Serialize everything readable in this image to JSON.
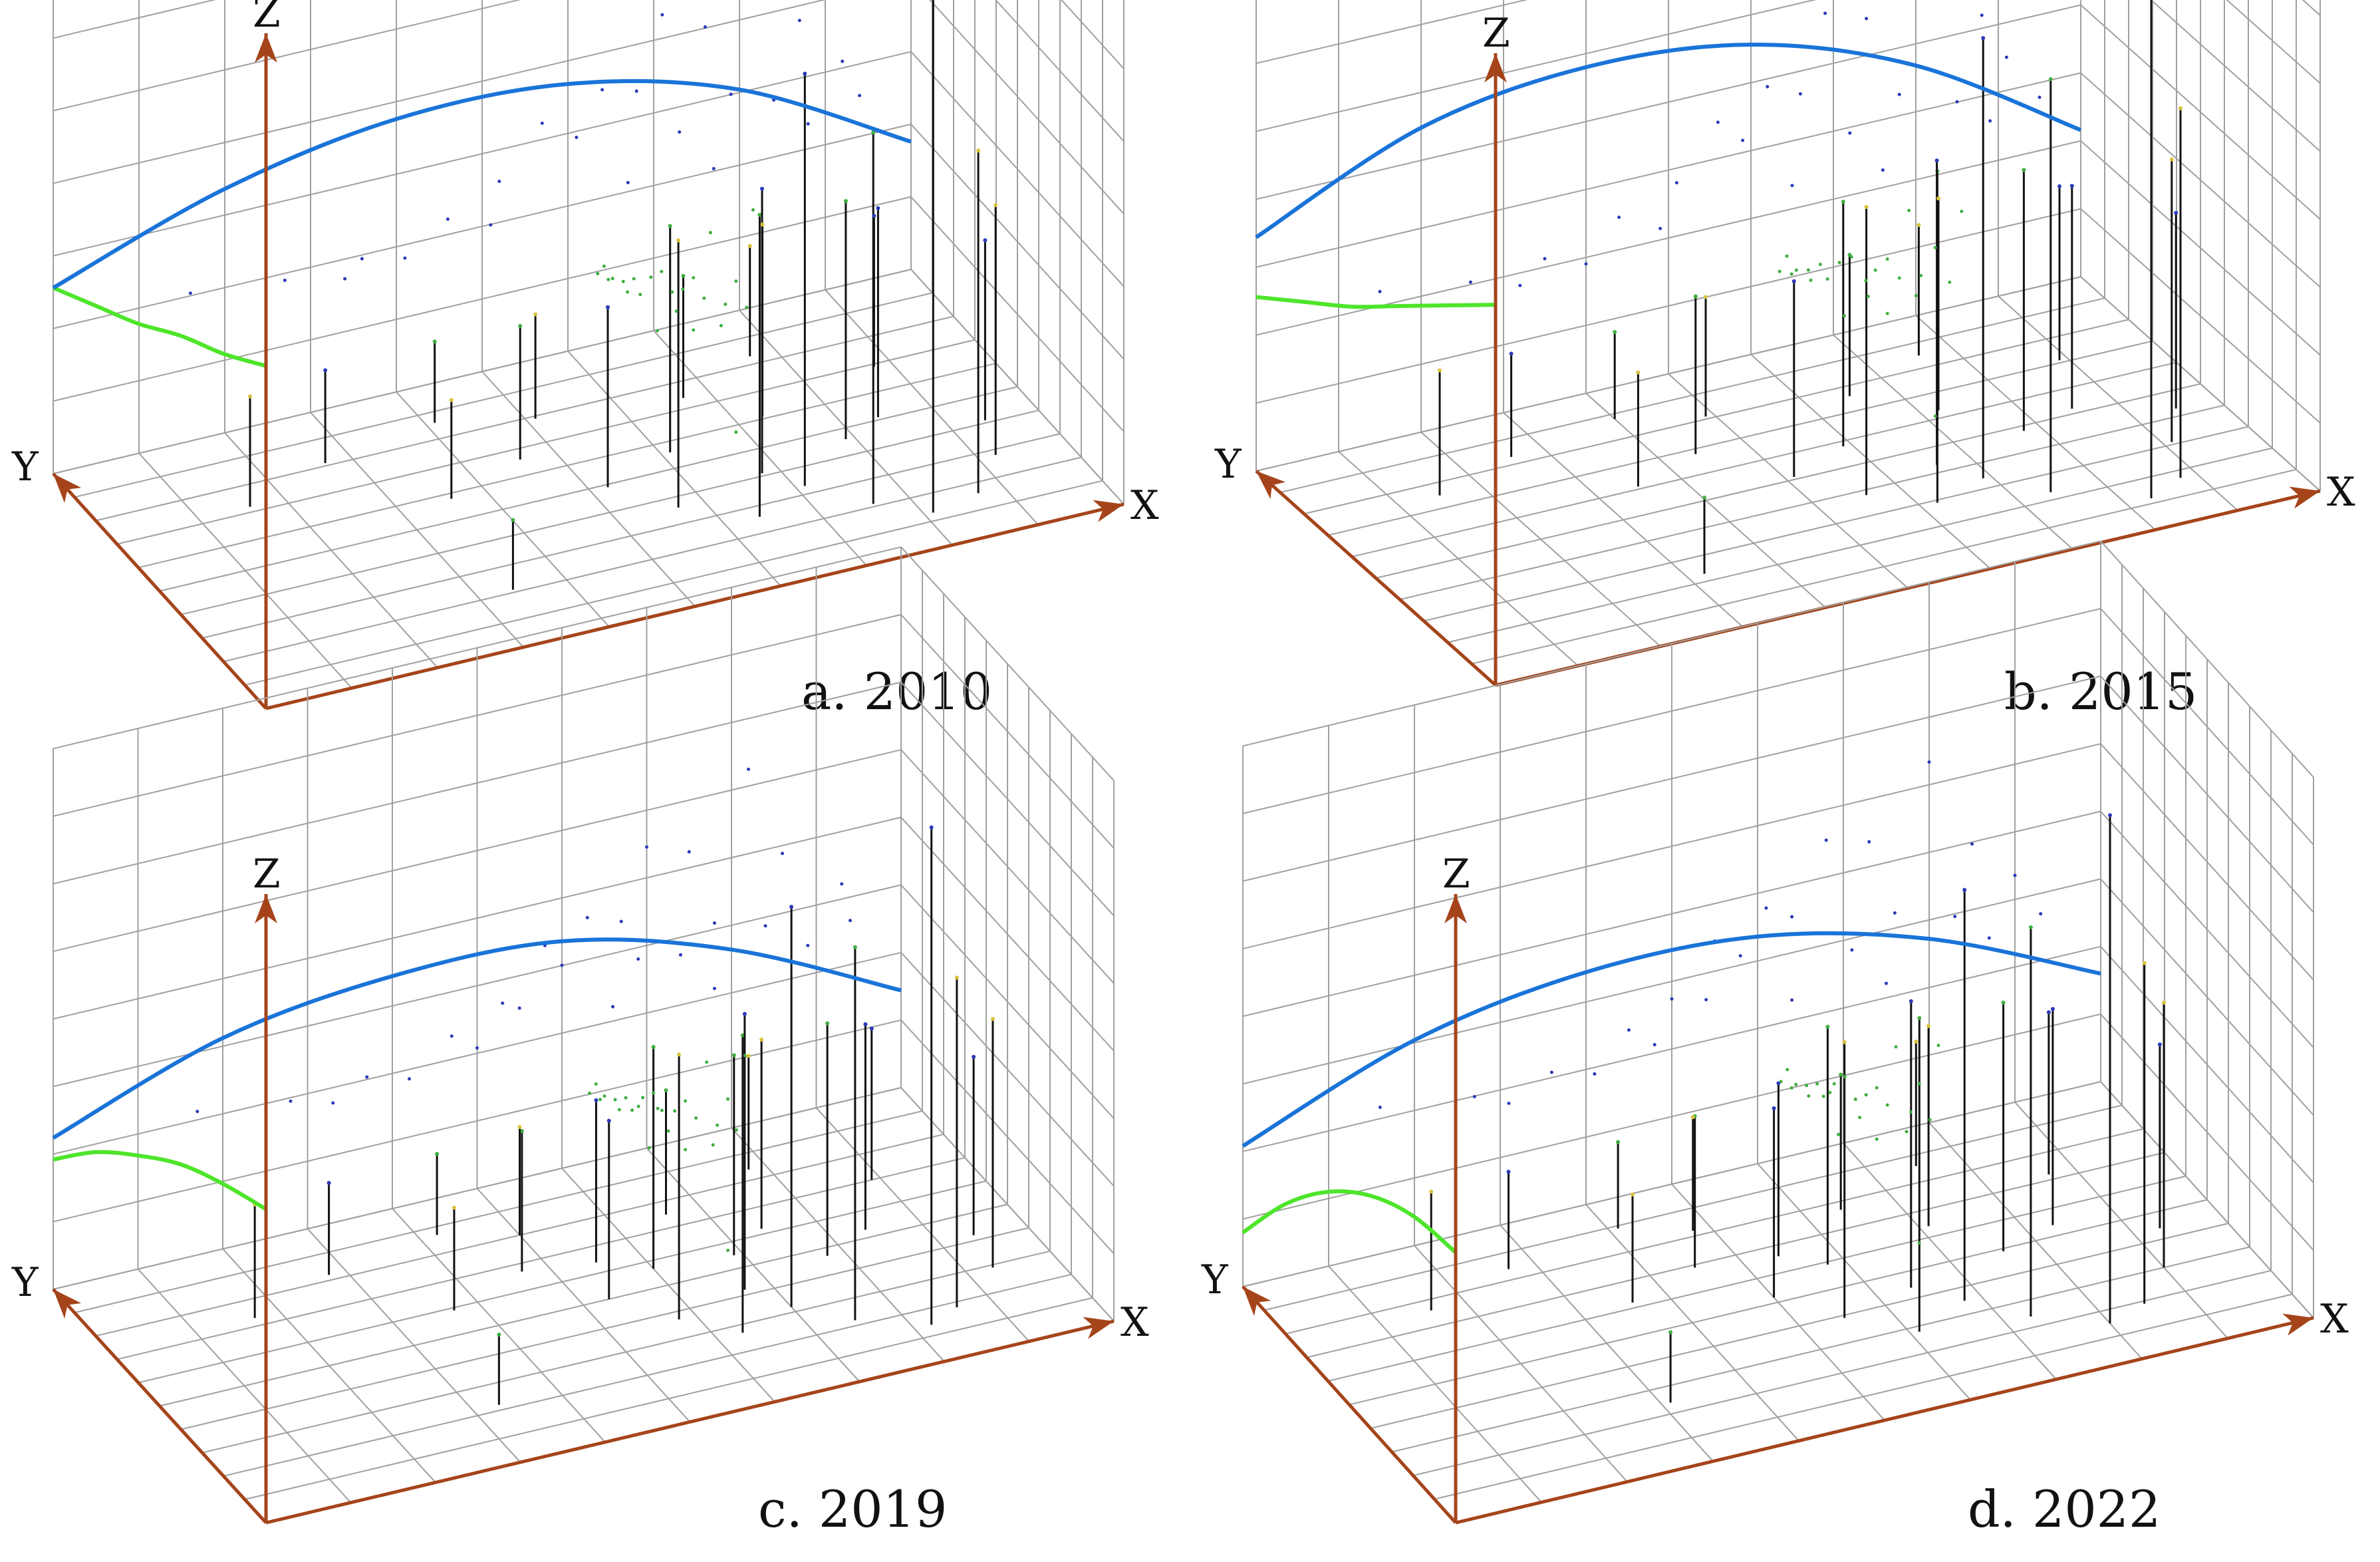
{
  "colors": {
    "grid": "#a0a0a0",
    "axis": "#a5441a",
    "trend_x": "#1a74d8",
    "trend_y": "#4ee52a",
    "stem": "#111111",
    "dot_blue": "#2a3ab8",
    "dot_green": "#3fae3f",
    "dot_yellow": "#d8c23a"
  },
  "axis_labels": {
    "x": "X",
    "y": "Y",
    "z": "Z"
  },
  "panels": [
    {
      "id": "a",
      "caption": "a. 2010"
    },
    {
      "id": "b",
      "caption": "b. 2015"
    },
    {
      "id": "c",
      "caption": "c. 2019"
    },
    {
      "id": "d",
      "caption": "d. 2022"
    }
  ],
  "chart_data": [
    {
      "type": "scatter",
      "title": "",
      "caption": "a. 2010",
      "xlabel": "X",
      "ylabel": "Y",
      "zlabel": "Z",
      "grid": true,
      "xlim": [
        0,
        10
      ],
      "ylim": [
        0,
        10
      ],
      "zlim": [
        0,
        10
      ],
      "trend_xz": [
        [
          0,
          3.2
        ],
        [
          2,
          4.2
        ],
        [
          4,
          4.7
        ],
        [
          6,
          4.6
        ],
        [
          8,
          3.8
        ],
        [
          10,
          2.2
        ]
      ],
      "trend_yz": [
        [
          10,
          3.2
        ],
        [
          8,
          3.7
        ],
        [
          6,
          4.2
        ],
        [
          4,
          4.8
        ],
        [
          2,
          5.3
        ],
        [
          0,
          5.9
        ]
      ],
      "stems": [
        [
          8.1,
          1.3,
          9.5
        ],
        [
          7.6,
          2.1,
          6.4
        ],
        [
          8.7,
          1.6,
          5.9
        ],
        [
          7.1,
          3.3,
          7.1
        ],
        [
          6.4,
          2.6,
          5.2
        ],
        [
          9.2,
          2.8,
          4.3
        ],
        [
          6.8,
          4.1,
          4.9
        ],
        [
          7.9,
          4.6,
          4.1
        ],
        [
          5.7,
          3.6,
          4.6
        ],
        [
          8.4,
          5.1,
          3.6
        ],
        [
          6.1,
          5.6,
          3.9
        ],
        [
          7.3,
          6.1,
          3.3
        ],
        [
          5.2,
          4.9,
          3.1
        ],
        [
          4.6,
          6.6,
          2.3
        ],
        [
          3.6,
          5.8,
          1.7
        ],
        [
          8.8,
          6.9,
          2.6
        ],
        [
          6.7,
          7.4,
          2.1
        ],
        [
          5.1,
          7.9,
          1.8
        ],
        [
          2.7,
          8.1,
          1.6
        ],
        [
          4.1,
          8.6,
          1.4
        ],
        [
          7.7,
          8.3,
          1.9
        ],
        [
          9.4,
          4.1,
          3.1
        ],
        [
          3.4,
          2.1,
          1.2
        ],
        [
          1.6,
          7.2,
          1.9
        ]
      ]
    },
    {
      "type": "scatter",
      "title": "",
      "caption": "b. 2015",
      "xlabel": "X",
      "ylabel": "Y",
      "zlabel": "Z",
      "grid": true,
      "xlim": [
        0,
        10
      ],
      "ylim": [
        0,
        10
      ],
      "zlim": [
        0,
        10
      ],
      "trend_xz": [
        [
          0,
          4.3
        ],
        [
          2,
          5.6
        ],
        [
          4,
          6.0
        ],
        [
          6,
          5.7
        ],
        [
          8,
          4.6
        ],
        [
          10,
          2.7
        ]
      ],
      "trend_yz": [
        [
          10,
          3.2
        ],
        [
          8,
          3.9
        ],
        [
          6,
          4.6
        ],
        [
          4,
          5.4
        ],
        [
          2,
          6.2
        ],
        [
          0,
          7.0
        ]
      ],
      "stems": [
        [
          8.3,
          1.2,
          9.8
        ],
        [
          7.4,
          2.3,
          7.6
        ],
        [
          8.8,
          1.7,
          6.8
        ],
        [
          6.9,
          3.4,
          8.1
        ],
        [
          6.2,
          2.9,
          6.1
        ],
        [
          9.1,
          3.1,
          5.2
        ],
        [
          6.6,
          4.3,
          5.6
        ],
        [
          7.8,
          4.8,
          4.8
        ],
        [
          5.6,
          3.8,
          5.3
        ],
        [
          8.5,
          5.2,
          4.1
        ],
        [
          5.9,
          5.8,
          4.5
        ],
        [
          7.2,
          6.3,
          3.9
        ],
        [
          5.1,
          5.1,
          3.6
        ],
        [
          4.4,
          6.8,
          2.9
        ],
        [
          3.5,
          6.1,
          2.1
        ],
        [
          8.9,
          7.1,
          3.2
        ],
        [
          6.5,
          7.6,
          2.6
        ],
        [
          4.9,
          8.1,
          2.2
        ],
        [
          2.6,
          8.3,
          1.9
        ],
        [
          4.0,
          8.8,
          1.6
        ],
        [
          7.6,
          8.5,
          2.4
        ],
        [
          9.5,
          4.3,
          3.6
        ],
        [
          3.2,
          2.3,
          1.4
        ],
        [
          1.5,
          7.5,
          2.3
        ]
      ]
    },
    {
      "type": "scatter",
      "title": "",
      "caption": "c. 2019",
      "xlabel": "X",
      "ylabel": "Y",
      "zlabel": "Z",
      "grid": true,
      "xlim": [
        0,
        10
      ],
      "ylim": [
        0,
        10
      ],
      "zlim": [
        0,
        10
      ],
      "trend_xz": [
        [
          0,
          2.8
        ],
        [
          2,
          3.9
        ],
        [
          4,
          4.3
        ],
        [
          6,
          4.2
        ],
        [
          8,
          3.3
        ],
        [
          10,
          1.8
        ]
      ],
      "trend_yz": [
        [
          10,
          2.4
        ],
        [
          8,
          3.4
        ],
        [
          6,
          4.2
        ],
        [
          4,
          4.9
        ],
        [
          2,
          5.4
        ],
        [
          0,
          5.8
        ]
      ],
      "stems": [
        [
          8.2,
          1.4,
          9.2
        ],
        [
          7.5,
          2.2,
          6.9
        ],
        [
          8.6,
          1.8,
          6.1
        ],
        [
          7.0,
          3.2,
          7.4
        ],
        [
          6.3,
          2.7,
          5.5
        ],
        [
          9.3,
          2.9,
          4.6
        ],
        [
          6.7,
          4.2,
          5.1
        ],
        [
          7.8,
          4.7,
          4.3
        ],
        [
          5.8,
          3.7,
          4.9
        ],
        [
          8.4,
          5.3,
          3.8
        ],
        [
          6.0,
          5.7,
          4.1
        ],
        [
          7.4,
          6.2,
          3.5
        ],
        [
          5.3,
          5.0,
          3.3
        ],
        [
          4.7,
          6.7,
          2.6
        ],
        [
          3.7,
          5.9,
          1.9
        ],
        [
          8.9,
          7.0,
          2.8
        ],
        [
          6.6,
          7.5,
          2.3
        ],
        [
          5.0,
          8.0,
          2.0
        ],
        [
          2.8,
          8.2,
          1.7
        ],
        [
          4.2,
          8.7,
          1.5
        ],
        [
          7.8,
          8.4,
          2.1
        ],
        [
          9.4,
          4.2,
          3.3
        ],
        [
          3.3,
          2.2,
          1.3
        ],
        [
          1.7,
          7.3,
          2.1
        ],
        [
          5.5,
          6.4,
          3.0
        ],
        [
          6.9,
          5.5,
          3.7
        ]
      ]
    },
    {
      "type": "scatter",
      "title": "",
      "caption": "d. 2022",
      "xlabel": "X",
      "ylabel": "Y",
      "zlabel": "Z",
      "grid": true,
      "xlim": [
        0,
        10
      ],
      "ylim": [
        0,
        10
      ],
      "zlim": [
        0,
        10
      ],
      "trend_xz": [
        [
          0,
          2.6
        ],
        [
          2,
          3.8
        ],
        [
          4,
          4.3
        ],
        [
          6,
          4.2
        ],
        [
          8,
          3.4
        ],
        [
          10,
          2.0
        ]
      ],
      "trend_yz": [
        [
          10,
          1.0
        ],
        [
          8,
          2.4
        ],
        [
          6,
          3.5
        ],
        [
          4,
          4.3
        ],
        [
          2,
          4.8
        ],
        [
          0,
          5.0
        ]
      ],
      "stems": [
        [
          8.0,
          1.5,
          9.4
        ],
        [
          7.3,
          2.4,
          7.2
        ],
        [
          8.5,
          1.9,
          6.3
        ],
        [
          6.8,
          3.5,
          7.6
        ],
        [
          6.1,
          2.8,
          5.8
        ],
        [
          9.0,
          3.0,
          4.9
        ],
        [
          6.4,
          4.4,
          5.3
        ],
        [
          7.6,
          4.9,
          4.6
        ],
        [
          5.5,
          3.9,
          5.1
        ],
        [
          8.3,
          5.4,
          4.0
        ],
        [
          5.8,
          5.9,
          4.4
        ],
        [
          7.1,
          6.4,
          3.7
        ],
        [
          5.0,
          5.2,
          3.5
        ],
        [
          4.5,
          6.9,
          2.8
        ],
        [
          3.6,
          6.2,
          2.0
        ],
        [
          8.7,
          7.2,
          3.0
        ],
        [
          6.4,
          7.7,
          2.5
        ],
        [
          4.8,
          8.2,
          2.1
        ],
        [
          2.7,
          8.4,
          1.8
        ],
        [
          4.1,
          8.9,
          1.6
        ],
        [
          7.5,
          8.6,
          2.3
        ],
        [
          9.3,
          4.4,
          3.4
        ],
        [
          3.1,
          2.4,
          1.3
        ],
        [
          1.6,
          7.6,
          2.2
        ],
        [
          5.4,
          6.6,
          3.2
        ]
      ]
    }
  ]
}
